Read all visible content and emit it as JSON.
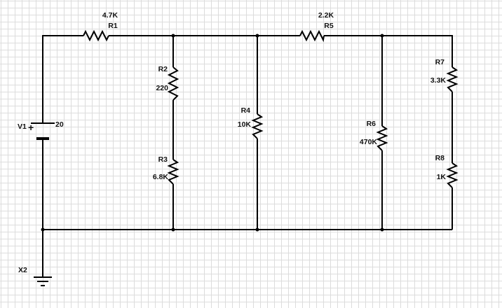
{
  "circuit": {
    "source": {
      "name": "V1",
      "value": "20",
      "plus": "+"
    },
    "ground": {
      "name": "X2"
    },
    "resistors": {
      "R1": {
        "name": "R1",
        "value": "4.7K"
      },
      "R2": {
        "name": "R2",
        "value": "220"
      },
      "R3": {
        "name": "R3",
        "value": "6.8K"
      },
      "R4": {
        "name": "R4",
        "value": "10K"
      },
      "R5": {
        "name": "R5",
        "value": "2.2K"
      },
      "R6": {
        "name": "R6",
        "value": "470K"
      },
      "R7": {
        "name": "R7",
        "value": "3.3K"
      },
      "R8": {
        "name": "R8",
        "value": "1K"
      }
    }
  },
  "colors": {
    "wire": "#000000",
    "grid": "#dcdcdc",
    "background": "#ffffff"
  }
}
